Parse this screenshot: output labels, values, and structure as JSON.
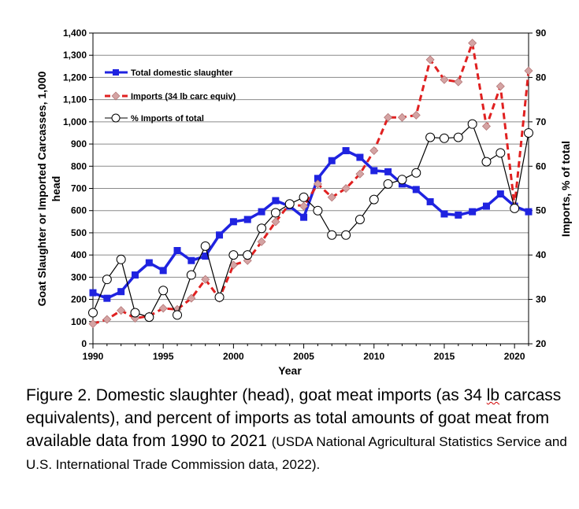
{
  "chart_data": {
    "type": "line",
    "x": [
      1990,
      1991,
      1992,
      1993,
      1994,
      1995,
      1996,
      1997,
      1998,
      1999,
      2000,
      2001,
      2002,
      2003,
      2004,
      2005,
      2006,
      2007,
      2008,
      2009,
      2010,
      2011,
      2012,
      2013,
      2014,
      2015,
      2016,
      2017,
      2018,
      2019,
      2020,
      2021
    ],
    "series": [
      {
        "name": "Total domestic slaughter",
        "axis": "left",
        "color": "#1f23e0",
        "style": "solid-square",
        "values": [
          230,
          205,
          235,
          310,
          365,
          330,
          420,
          375,
          395,
          490,
          550,
          560,
          595,
          645,
          620,
          570,
          745,
          825,
          870,
          840,
          780,
          775,
          720,
          695,
          640,
          585,
          580,
          595,
          620,
          675,
          620,
          595
        ]
      },
      {
        "name": "Imports (34 lb carc equiv)",
        "axis": "left",
        "color": "#e02020",
        "marker_color": "#d4a3a3",
        "style": "dashed-diamond",
        "values": [
          90,
          110,
          150,
          115,
          125,
          160,
          155,
          205,
          290,
          205,
          355,
          375,
          460,
          550,
          630,
          620,
          720,
          660,
          700,
          765,
          870,
          1020,
          1020,
          1030,
          1280,
          1190,
          1180,
          1355,
          980,
          1160,
          620,
          1230
        ]
      },
      {
        "name": "% Imports of total",
        "axis": "right",
        "color": "#000000",
        "style": "thin-circle",
        "values": [
          27,
          34.5,
          39,
          27,
          26,
          32,
          26.5,
          35.5,
          42,
          30.5,
          40,
          40,
          46,
          49.5,
          51.5,
          53,
          50,
          44.5,
          44.5,
          48,
          52.5,
          56,
          57,
          58.5,
          66.5,
          66.3,
          66.5,
          69.5,
          61,
          63,
          50.5,
          67.5
        ]
      }
    ],
    "xlim": [
      1990,
      2021
    ],
    "xticks": [
      "1990",
      "1995",
      "2000",
      "2005",
      "2010",
      "2015",
      "2020"
    ],
    "ylim": [
      0,
      1400
    ],
    "yticks": [
      "0",
      "100",
      "200",
      "300",
      "400",
      "500",
      "600",
      "700",
      "800",
      "900",
      "1,000",
      "1,100",
      "1,200",
      "1,300",
      "1,400"
    ],
    "y2lim": [
      20,
      90
    ],
    "y2ticks": [
      "20",
      "30",
      "40",
      "50",
      "60",
      "70",
      "80",
      "90"
    ],
    "xlabel": "Year",
    "ylabel_line1": "Goat Slaughter or Imported Carcasses, 1,000",
    "ylabel_line2": "head",
    "y2label": "Imports, % of total",
    "grid": "horizontal",
    "legend_position": "top-left"
  },
  "caption": {
    "part1": "Figure 2. Domestic slaughter (head), goat meat imports (as 34 ",
    "squiggle_word": "lb",
    "part2": " carcass equivalents), and percent of imports as total amounts of goat meat from available data from 1990 to 2021 ",
    "source": "(USDA National Agricultural Statistics Service and U.S. International Trade Commission data, 2022)."
  }
}
